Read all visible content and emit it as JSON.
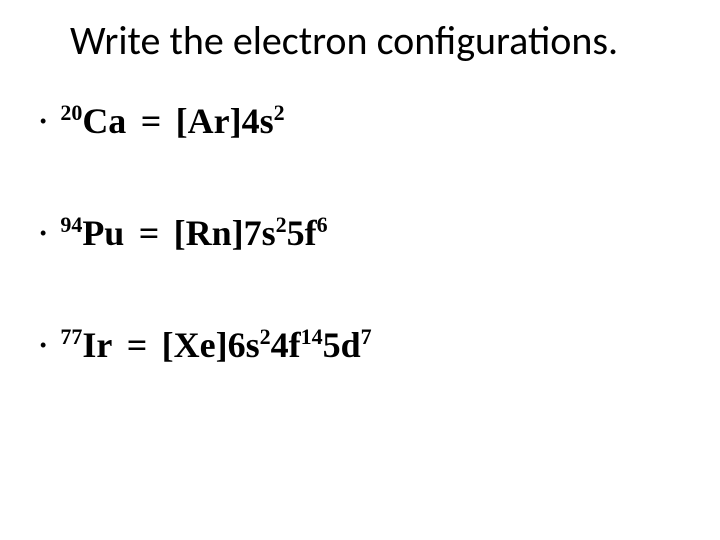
{
  "title": "Write the electron configurations.",
  "bullet_char": "•",
  "colors": {
    "text": "#000000",
    "background": "#ffffff"
  },
  "font_sizes_pt": {
    "title": 30,
    "body": 27,
    "superscript": 16,
    "bullet": 14
  },
  "font_families": {
    "title": "Calibri",
    "body": "Times New Roman"
  },
  "items": [
    {
      "element_superscript": "20",
      "element_symbol": "Ca",
      "config_parts": [
        {
          "text": "[Ar]4s"
        },
        {
          "sup": "2"
        }
      ]
    },
    {
      "element_superscript": "94",
      "element_symbol": "Pu",
      "config_parts": [
        {
          "text": "[Rn]7s"
        },
        {
          "sup": "2"
        },
        {
          "text": "5f"
        },
        {
          "sup": "6"
        }
      ]
    },
    {
      "element_superscript": "77",
      "element_symbol": "Ir",
      "config_parts": [
        {
          "text": "[Xe]6s"
        },
        {
          "sup": "2"
        },
        {
          "text": "4f"
        },
        {
          "sup": "14"
        },
        {
          "text": "5d"
        },
        {
          "sup": "7"
        }
      ]
    }
  ]
}
